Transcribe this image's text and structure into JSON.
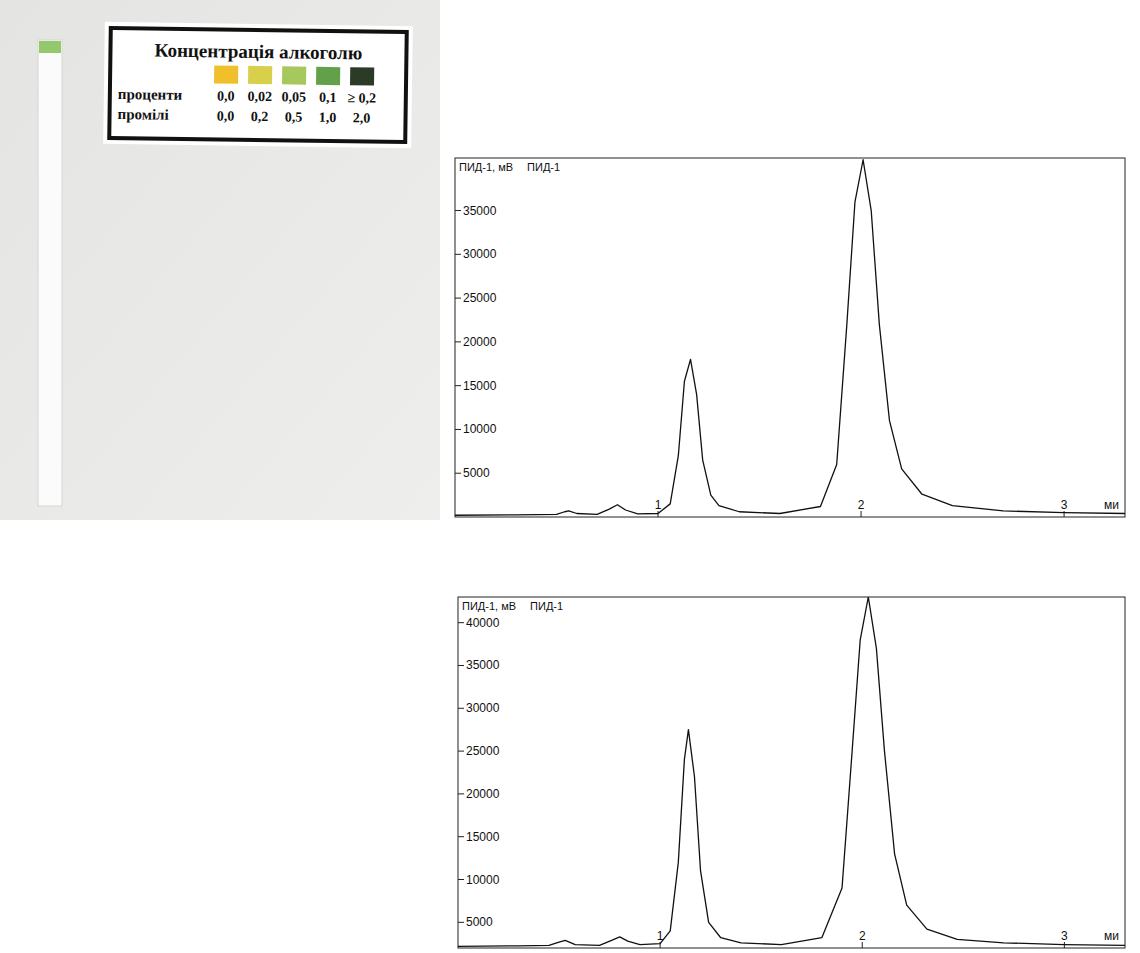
{
  "chart_data": [
    {
      "type": "line",
      "title": "ПИД-1",
      "y_label": "ПИД-1, мВ",
      "x_label": "ми",
      "x": [
        0,
        0.3,
        0.5,
        0.54,
        0.56,
        0.6,
        0.7,
        0.76,
        0.8,
        0.84,
        0.9,
        1.0,
        1.06,
        1.1,
        1.13,
        1.16,
        1.19,
        1.22,
        1.26,
        1.3,
        1.4,
        1.6,
        1.8,
        1.88,
        1.93,
        1.97,
        2.01,
        2.05,
        2.09,
        2.14,
        2.2,
        2.3,
        2.45,
        2.7,
        3.0,
        3.3
      ],
      "values": [
        200,
        250,
        300,
        600,
        700,
        400,
        300,
        900,
        1400,
        800,
        350,
        400,
        1500,
        7000,
        15500,
        18000,
        14000,
        6500,
        2500,
        1300,
        600,
        400,
        1200,
        6000,
        22000,
        36000,
        40800,
        35000,
        22000,
        11000,
        5500,
        2600,
        1300,
        700,
        500,
        400
      ],
      "color": "#111111",
      "xlim": [
        0,
        3.3
      ],
      "xticks": [
        1,
        2,
        3
      ],
      "ylim": [
        0,
        41000
      ],
      "yticks": [
        5000,
        10000,
        15000,
        20000,
        25000,
        30000,
        35000
      ],
      "grid": false
    },
    {
      "type": "line",
      "title": "ПИД-1",
      "y_label": "ПИД-1, мВ",
      "x_label": "ми",
      "x": [
        0,
        0.3,
        0.45,
        0.5,
        0.53,
        0.58,
        0.7,
        0.76,
        0.8,
        0.84,
        0.9,
        1.0,
        1.05,
        1.09,
        1.12,
        1.14,
        1.17,
        1.2,
        1.24,
        1.3,
        1.4,
        1.6,
        1.8,
        1.9,
        1.95,
        1.99,
        2.03,
        2.07,
        2.11,
        2.16,
        2.22,
        2.32,
        2.47,
        2.7,
        3.0,
        3.3
      ],
      "values": [
        2200,
        2250,
        2300,
        2700,
        2900,
        2400,
        2300,
        2900,
        3300,
        2800,
        2400,
        2500,
        4000,
        12000,
        24000,
        27500,
        22000,
        11000,
        5000,
        3200,
        2600,
        2400,
        3200,
        9000,
        25000,
        38000,
        43000,
        37000,
        25000,
        13000,
        7000,
        4200,
        3000,
        2600,
        2400,
        2300
      ],
      "color": "#111111",
      "xlim": [
        0,
        3.3
      ],
      "xticks": [
        1,
        2,
        3
      ],
      "ylim": [
        2000,
        43000
      ],
      "yticks": [
        5000,
        10000,
        15000,
        20000,
        25000,
        30000,
        35000,
        40000
      ],
      "grid": false
    }
  ],
  "strip_card": {
    "title": "Концентрація алкоголю",
    "row_labels": [
      "проценти",
      "промілі"
    ],
    "swatches": [
      {
        "color": "#f0c02c",
        "percent": "0,0",
        "permille": "0,0"
      },
      {
        "color": "#d8cf4a",
        "percent": "0,02",
        "permille": "0,2"
      },
      {
        "color": "#a7c85c",
        "percent": "0,05",
        "permille": "0,5"
      },
      {
        "color": "#62a04a",
        "percent": "0,1",
        "permille": "1,0"
      },
      {
        "color": "#2c3a28",
        "percent": "≥ 0,2",
        "permille": "2,0"
      }
    ],
    "strip_color": "#93c96c"
  }
}
